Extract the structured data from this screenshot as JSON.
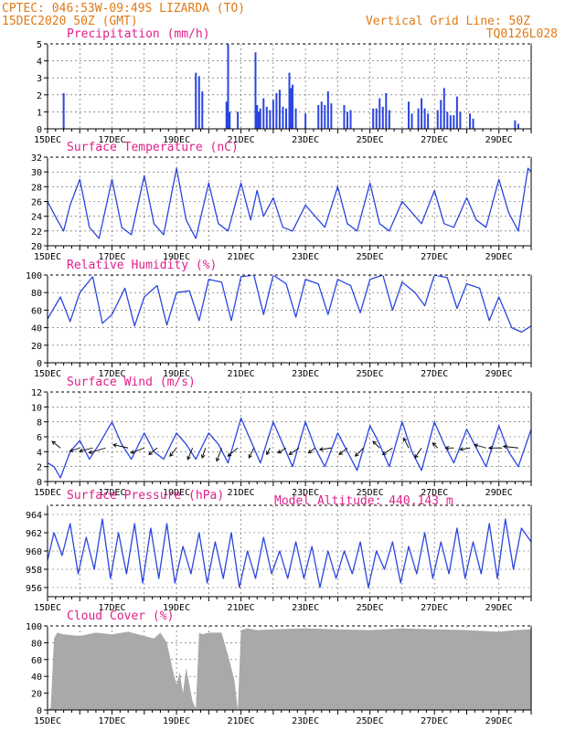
{
  "header": {
    "line1": "CPTEC:   046:53W-09:49S  LIZARDA (TO)",
    "line2": "15DEC2020 50Z (GMT)",
    "right1": "Vertical Grid Line: 50Z",
    "right2": "TQ0126L028",
    "altitude": "Model Altitude: 440.143 m"
  },
  "colors": {
    "header": "#e07a16",
    "title": "#e0208c",
    "line": "#2b45e0",
    "bar": "#2b45e0",
    "cloud": "#a9a9a9"
  },
  "chart_data": [
    {
      "type": "bar",
      "title": "Precipitation (mm/h)",
      "ylim": [
        0,
        5
      ],
      "yticks": [
        0,
        1,
        2,
        3,
        4,
        5
      ],
      "xlim": [
        15,
        30
      ],
      "xticks": [
        "15DEC",
        "17DEC",
        "19DEC",
        "21DEC",
        "23DEC",
        "25DEC",
        "27DEC",
        "29DEC"
      ],
      "x": [
        15.5,
        19.6,
        19.7,
        19.8,
        20.55,
        20.6,
        20.65,
        20.9,
        21.45,
        21.5,
        21.55,
        21.6,
        21.7,
        21.8,
        21.9,
        22.0,
        22.1,
        22.2,
        22.3,
        22.4,
        22.5,
        22.55,
        22.6,
        22.7,
        23.0,
        23.4,
        23.5,
        23.6,
        23.7,
        23.8,
        24.2,
        24.3,
        24.4,
        25.1,
        25.2,
        25.3,
        25.4,
        25.5,
        25.6,
        26.2,
        26.3,
        26.5,
        26.6,
        26.7,
        26.8,
        27.1,
        27.2,
        27.3,
        27.4,
        27.5,
        27.6,
        27.7,
        27.8,
        28.1,
        28.2,
        29.5,
        29.6
      ],
      "values": [
        2.1,
        3.3,
        3.1,
        2.2,
        1.6,
        5.0,
        1.0,
        1.0,
        4.5,
        1.4,
        1.0,
        1.2,
        1.8,
        1.3,
        1.1,
        1.7,
        2.1,
        2.3,
        1.3,
        1.2,
        3.3,
        2.4,
        2.6,
        1.2,
        0.9,
        1.4,
        1.6,
        1.4,
        2.2,
        1.5,
        1.4,
        1.0,
        1.1,
        1.2,
        1.2,
        1.8,
        1.3,
        2.1,
        1.1,
        1.6,
        0.9,
        1.2,
        1.8,
        1.2,
        0.9,
        1.1,
        1.7,
        2.4,
        1.0,
        0.8,
        0.8,
        1.9,
        1.0,
        0.9,
        0.6,
        0.5,
        0.3
      ]
    },
    {
      "type": "line",
      "title": "Surface Temperature (nC)",
      "ylim": [
        20,
        32
      ],
      "yticks": [
        20,
        22,
        24,
        26,
        28,
        30,
        32
      ],
      "xlim": [
        15,
        30
      ],
      "xticks": [
        "15DEC",
        "17DEC",
        "19DEC",
        "21DEC",
        "23DEC",
        "25DEC",
        "27DEC",
        "29DEC"
      ],
      "x": [
        15.0,
        15.3,
        15.5,
        15.7,
        16.0,
        16.3,
        16.6,
        17.0,
        17.3,
        17.6,
        18.0,
        18.3,
        18.6,
        19.0,
        19.3,
        19.6,
        20.0,
        20.3,
        20.6,
        21.0,
        21.3,
        21.5,
        21.7,
        22.0,
        22.3,
        22.6,
        23.0,
        23.3,
        23.6,
        24.0,
        24.3,
        24.6,
        25.0,
        25.3,
        25.6,
        26.0,
        26.3,
        26.6,
        27.0,
        27.3,
        27.6,
        28.0,
        28.3,
        28.6,
        29.0,
        29.3,
        29.6,
        29.9,
        30.0
      ],
      "values": [
        26.0,
        23.5,
        22.0,
        25.5,
        29.0,
        22.5,
        21.0,
        29.0,
        22.5,
        21.5,
        29.5,
        23.0,
        21.5,
        30.5,
        23.5,
        21.0,
        28.5,
        23.0,
        22.0,
        28.5,
        23.5,
        27.5,
        24.0,
        26.5,
        22.5,
        22.0,
        25.5,
        24.0,
        22.5,
        28.0,
        23.0,
        22.0,
        28.5,
        23.0,
        22.0,
        26.0,
        24.5,
        23.0,
        27.5,
        23.0,
        22.5,
        26.5,
        23.5,
        22.5,
        29.0,
        24.5,
        22.0,
        30.5,
        30.0
      ]
    },
    {
      "type": "line",
      "title": "Relative Humidity (%)",
      "ylim": [
        0,
        100
      ],
      "yticks": [
        0,
        20,
        40,
        60,
        80,
        100
      ],
      "xlim": [
        15,
        30
      ],
      "xticks": [
        "15DEC",
        "17DEC",
        "19DEC",
        "21DEC",
        "23DEC",
        "25DEC",
        "27DEC",
        "29DEC"
      ],
      "x": [
        15.0,
        15.4,
        15.7,
        16.0,
        16.4,
        16.7,
        17.0,
        17.4,
        17.7,
        18.0,
        18.4,
        18.7,
        19.0,
        19.4,
        19.7,
        20.0,
        20.4,
        20.7,
        21.0,
        21.4,
        21.7,
        22.0,
        22.4,
        22.7,
        23.0,
        23.4,
        23.7,
        24.0,
        24.4,
        24.7,
        25.0,
        25.4,
        25.7,
        26.0,
        26.4,
        26.7,
        27.0,
        27.4,
        27.7,
        28.0,
        28.4,
        28.7,
        29.0,
        29.4,
        29.7,
        30.0
      ],
      "values": [
        50,
        75,
        47,
        80,
        98,
        45,
        55,
        85,
        42,
        75,
        88,
        43,
        80,
        82,
        48,
        95,
        92,
        48,
        98,
        100,
        55,
        100,
        90,
        52,
        95,
        90,
        55,
        95,
        88,
        57,
        95,
        100,
        60,
        92,
        80,
        65,
        100,
        97,
        62,
        90,
        85,
        48,
        75,
        40,
        35,
        42
      ]
    },
    {
      "type": "line",
      "title": "Surface Wind (m/s)",
      "ylim": [
        0,
        12
      ],
      "yticks": [
        0,
        2,
        4,
        6,
        8,
        10,
        12
      ],
      "xlim": [
        15,
        30
      ],
      "xticks": [
        "15DEC",
        "17DEC",
        "19DEC",
        "21DEC",
        "23DEC",
        "25DEC",
        "27DEC",
        "29DEC"
      ],
      "x": [
        15.0,
        15.2,
        15.4,
        15.7,
        16.0,
        16.3,
        16.6,
        17.0,
        17.3,
        17.6,
        18.0,
        18.3,
        18.6,
        19.0,
        19.3,
        19.6,
        20.0,
        20.3,
        20.6,
        21.0,
        21.3,
        21.6,
        22.0,
        22.3,
        22.6,
        23.0,
        23.3,
        23.6,
        24.0,
        24.3,
        24.6,
        25.0,
        25.3,
        25.6,
        26.0,
        26.3,
        26.6,
        27.0,
        27.3,
        27.6,
        28.0,
        28.3,
        28.6,
        29.0,
        29.3,
        29.6,
        30.0
      ],
      "values": [
        2.5,
        2.0,
        0.5,
        4.0,
        5.5,
        3.0,
        5.0,
        8.0,
        5.0,
        3.0,
        6.5,
        4.0,
        3.0,
        6.5,
        5.0,
        3.0,
        6.5,
        5.0,
        2.5,
        8.5,
        5.5,
        2.5,
        8.0,
        5.0,
        2.0,
        8.0,
        4.5,
        2.0,
        6.5,
        4.0,
        1.5,
        7.5,
        5.0,
        2.0,
        8.0,
        4.0,
        1.5,
        8.0,
        5.0,
        2.5,
        7.0,
        4.5,
        2.0,
        7.5,
        4.0,
        2.0,
        7.0
      ],
      "vectors": {
        "x": [
          15.4,
          16.0,
          16.4,
          16.8,
          17.5,
          18.0,
          18.4,
          19.0,
          19.5,
          19.9,
          20.4,
          20.9,
          21.4,
          21.9,
          22.4,
          22.8,
          23.3,
          23.8,
          24.3,
          24.8,
          25.3,
          25.7,
          26.2,
          26.6,
          27.1,
          27.6,
          28.1,
          28.6,
          29.1,
          29.6
        ],
        "u": [
          -0.5,
          -0.6,
          -0.8,
          -1.0,
          -0.9,
          -0.8,
          -0.5,
          -0.4,
          -0.3,
          -0.2,
          -0.3,
          -0.6,
          -0.3,
          -0.2,
          -0.5,
          -0.6,
          -0.4,
          -0.7,
          -0.5,
          -0.5,
          -0.4,
          -0.6,
          -0.3,
          -0.4,
          -0.3,
          -0.5,
          -0.6,
          -0.7,
          -0.8,
          -0.9
        ],
        "v": [
          0.4,
          -0.2,
          -0.2,
          -0.3,
          0.2,
          -0.3,
          -0.4,
          -0.5,
          -0.7,
          -0.6,
          -0.8,
          -0.5,
          -0.6,
          -0.4,
          -0.3,
          -0.4,
          -0.3,
          -0.1,
          -0.4,
          -0.5,
          0.4,
          -0.4,
          0.6,
          -0.6,
          0.3,
          0.0,
          -0.1,
          0.2,
          0.0,
          0.1
        ]
      }
    },
    {
      "type": "line",
      "title": "Surface Pressure (hPa)",
      "ylim": [
        955,
        965
      ],
      "yticks": [
        956,
        958,
        960,
        962,
        964
      ],
      "xlim": [
        15,
        30
      ],
      "xticks": [
        "15DEC",
        "17DEC",
        "19DEC",
        "21DEC",
        "23DEC",
        "25DEC",
        "27DEC",
        "29DEC"
      ],
      "x": [
        15.0,
        15.2,
        15.45,
        15.7,
        15.95,
        16.2,
        16.45,
        16.7,
        16.95,
        17.2,
        17.45,
        17.7,
        17.95,
        18.2,
        18.45,
        18.7,
        18.95,
        19.2,
        19.45,
        19.7,
        19.95,
        20.2,
        20.45,
        20.7,
        20.95,
        21.2,
        21.45,
        21.7,
        21.95,
        22.2,
        22.45,
        22.7,
        22.95,
        23.2,
        23.45,
        23.7,
        23.95,
        24.2,
        24.45,
        24.7,
        24.95,
        25.2,
        25.45,
        25.7,
        25.95,
        26.2,
        26.45,
        26.7,
        26.95,
        27.2,
        27.45,
        27.7,
        27.95,
        28.2,
        28.45,
        28.7,
        28.95,
        29.2,
        29.45,
        29.7,
        30.0
      ],
      "values": [
        959.0,
        962.0,
        959.5,
        963.0,
        957.5,
        961.5,
        958.0,
        963.5,
        957.0,
        962.0,
        957.5,
        963.0,
        956.5,
        962.5,
        957.0,
        963.0,
        956.5,
        960.5,
        957.5,
        962.0,
        956.5,
        961.0,
        957.0,
        962.0,
        956.0,
        960.0,
        957.0,
        961.5,
        957.5,
        960.0,
        957.0,
        961.0,
        957.0,
        960.5,
        956.0,
        960.0,
        957.0,
        960.0,
        957.5,
        961.0,
        956.0,
        960.0,
        958.0,
        961.0,
        956.5,
        960.5,
        957.5,
        962.0,
        957.0,
        961.0,
        957.5,
        962.5,
        957.0,
        961.0,
        957.5,
        963.0,
        957.0,
        963.5,
        958.0,
        962.5,
        961.0
      ]
    },
    {
      "type": "area",
      "title": "Cloud Cover (%)",
      "ylim": [
        0,
        100
      ],
      "yticks": [
        0,
        20,
        40,
        60,
        80,
        100
      ],
      "xlim": [
        15,
        30
      ],
      "xticks": [
        "15DEC",
        "17DEC",
        "19DEC",
        "21DEC",
        "23DEC",
        "25DEC",
        "27DEC",
        "29DEC"
      ],
      "x": [
        15.0,
        15.1,
        15.2,
        15.3,
        15.5,
        16.0,
        16.5,
        17.0,
        17.5,
        18.0,
        18.3,
        18.5,
        18.7,
        18.9,
        19.0,
        19.1,
        19.2,
        19.3,
        19.4,
        19.5,
        19.6,
        19.7,
        19.8,
        20.0,
        20.2,
        20.4,
        20.6,
        20.8,
        20.9,
        21.0,
        21.2,
        21.5,
        22.0,
        23.0,
        24.0,
        25.0,
        26.0,
        27.0,
        28.0,
        29.0,
        29.5,
        30.0
      ],
      "values": [
        0,
        3,
        85,
        92,
        90,
        88,
        92,
        90,
        93,
        88,
        85,
        92,
        80,
        45,
        30,
        45,
        20,
        50,
        30,
        10,
        2,
        92,
        90,
        92,
        92,
        92,
        65,
        35,
        0,
        95,
        97,
        95,
        96,
        97,
        96,
        95,
        97,
        96,
        95,
        93,
        95,
        96
      ]
    }
  ]
}
